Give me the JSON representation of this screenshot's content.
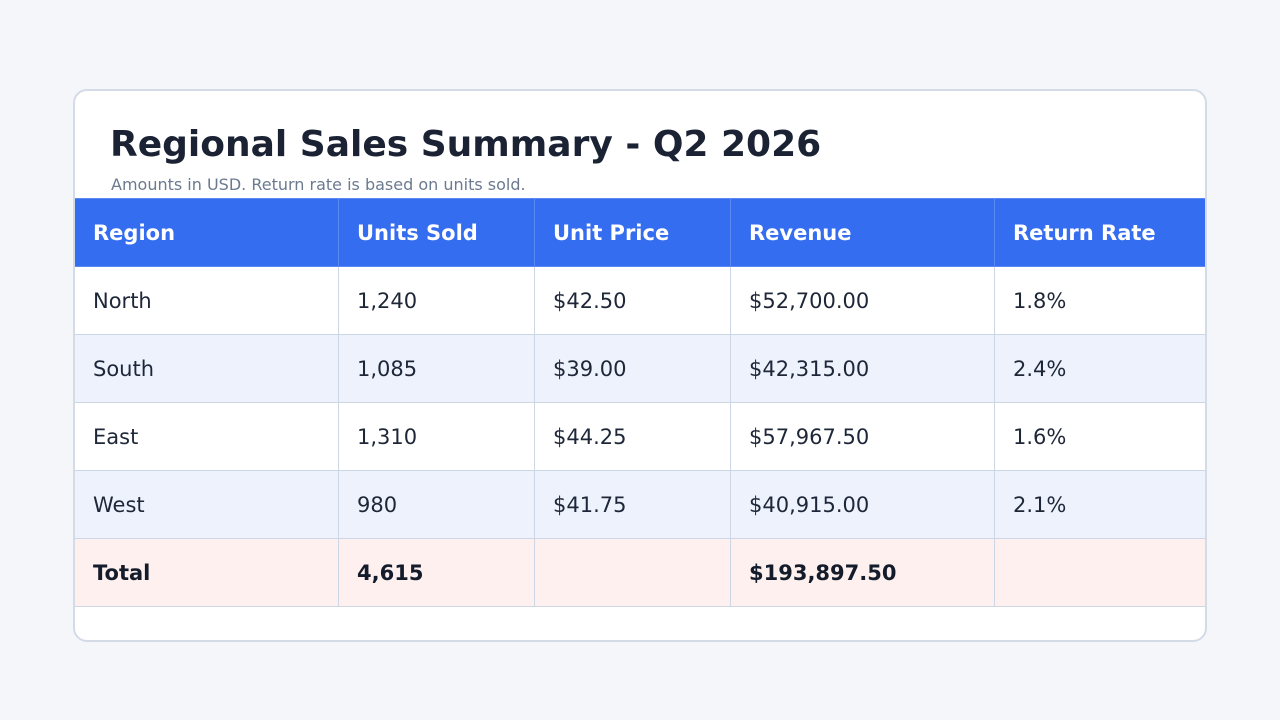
{
  "title": "Regional Sales Summary - Q2 2026",
  "subtitle": "Amounts in USD. Return rate is based on units sold.",
  "colors": {
    "header_bg": "#356df0",
    "header_text": "#ffffff",
    "stripe_bg": "#edf2fd",
    "total_bg": "#fdf0ee"
  },
  "chart_data": {
    "type": "table",
    "title": "Regional Sales Summary - Q2 2026",
    "subtitle": "Amounts in USD. Return rate is based on units sold.",
    "columns": [
      "Region",
      "Units Sold",
      "Unit Price",
      "Revenue",
      "Return Rate"
    ],
    "rows": [
      [
        "North",
        "1,240",
        "$42.50",
        "$52,700.00",
        "1.8%"
      ],
      [
        "South",
        "1,085",
        "$39.00",
        "$42,315.00",
        "2.4%"
      ],
      [
        "East",
        "1,310",
        "$44.25",
        "$57,967.50",
        "1.6%"
      ],
      [
        "West",
        "980",
        "$41.75",
        "$40,915.00",
        "2.1%"
      ]
    ],
    "total": [
      "Total",
      "4,615",
      "",
      "$193,897.50",
      ""
    ]
  }
}
